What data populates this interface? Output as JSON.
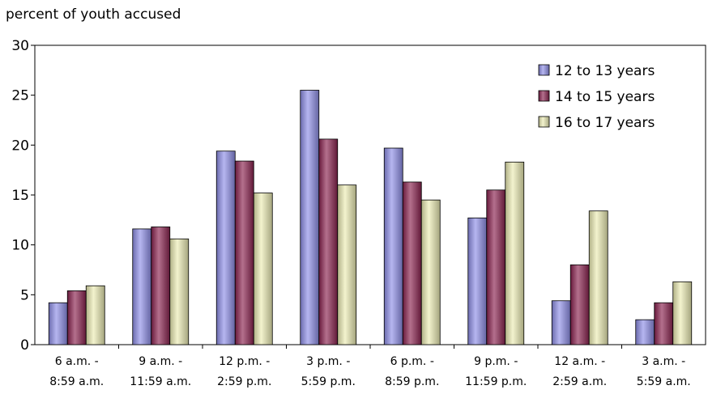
{
  "chart_data": {
    "type": "bar",
    "ylabel": "percent of youth accused",
    "ylim": [
      0,
      30
    ],
    "yticks": [
      0,
      5,
      10,
      15,
      20,
      25,
      30
    ],
    "categories": [
      [
        "6 a.m. -",
        "8:59 a.m."
      ],
      [
        "9 a.m. -",
        "11:59 a.m."
      ],
      [
        "12 p.m. -",
        "2:59 p.m."
      ],
      [
        "3 p.m. -",
        "5:59 p.m."
      ],
      [
        "6 p.m. -",
        "8:59 p.m."
      ],
      [
        "9 p.m. -",
        "11:59 p.m."
      ],
      [
        "12 a.m. -",
        "2:59 a.m."
      ],
      [
        "3 a.m. -",
        "5:59 a.m."
      ]
    ],
    "series": [
      {
        "name": "12 to 13 years",
        "color": "#8f8fe8",
        "values": [
          4.2,
          11.6,
          19.4,
          25.5,
          19.7,
          12.7,
          4.4,
          2.5
        ]
      },
      {
        "name": "14 to 15 years",
        "color": "#8b2350",
        "values": [
          5.4,
          11.8,
          18.4,
          20.6,
          16.3,
          15.5,
          8.0,
          4.2
        ]
      },
      {
        "name": "16 to 17 years",
        "color": "#ececb4",
        "values": [
          5.9,
          10.6,
          15.2,
          16.0,
          14.5,
          18.3,
          13.4,
          6.3
        ]
      }
    ],
    "legend_position": "top-right",
    "grid": false
  }
}
